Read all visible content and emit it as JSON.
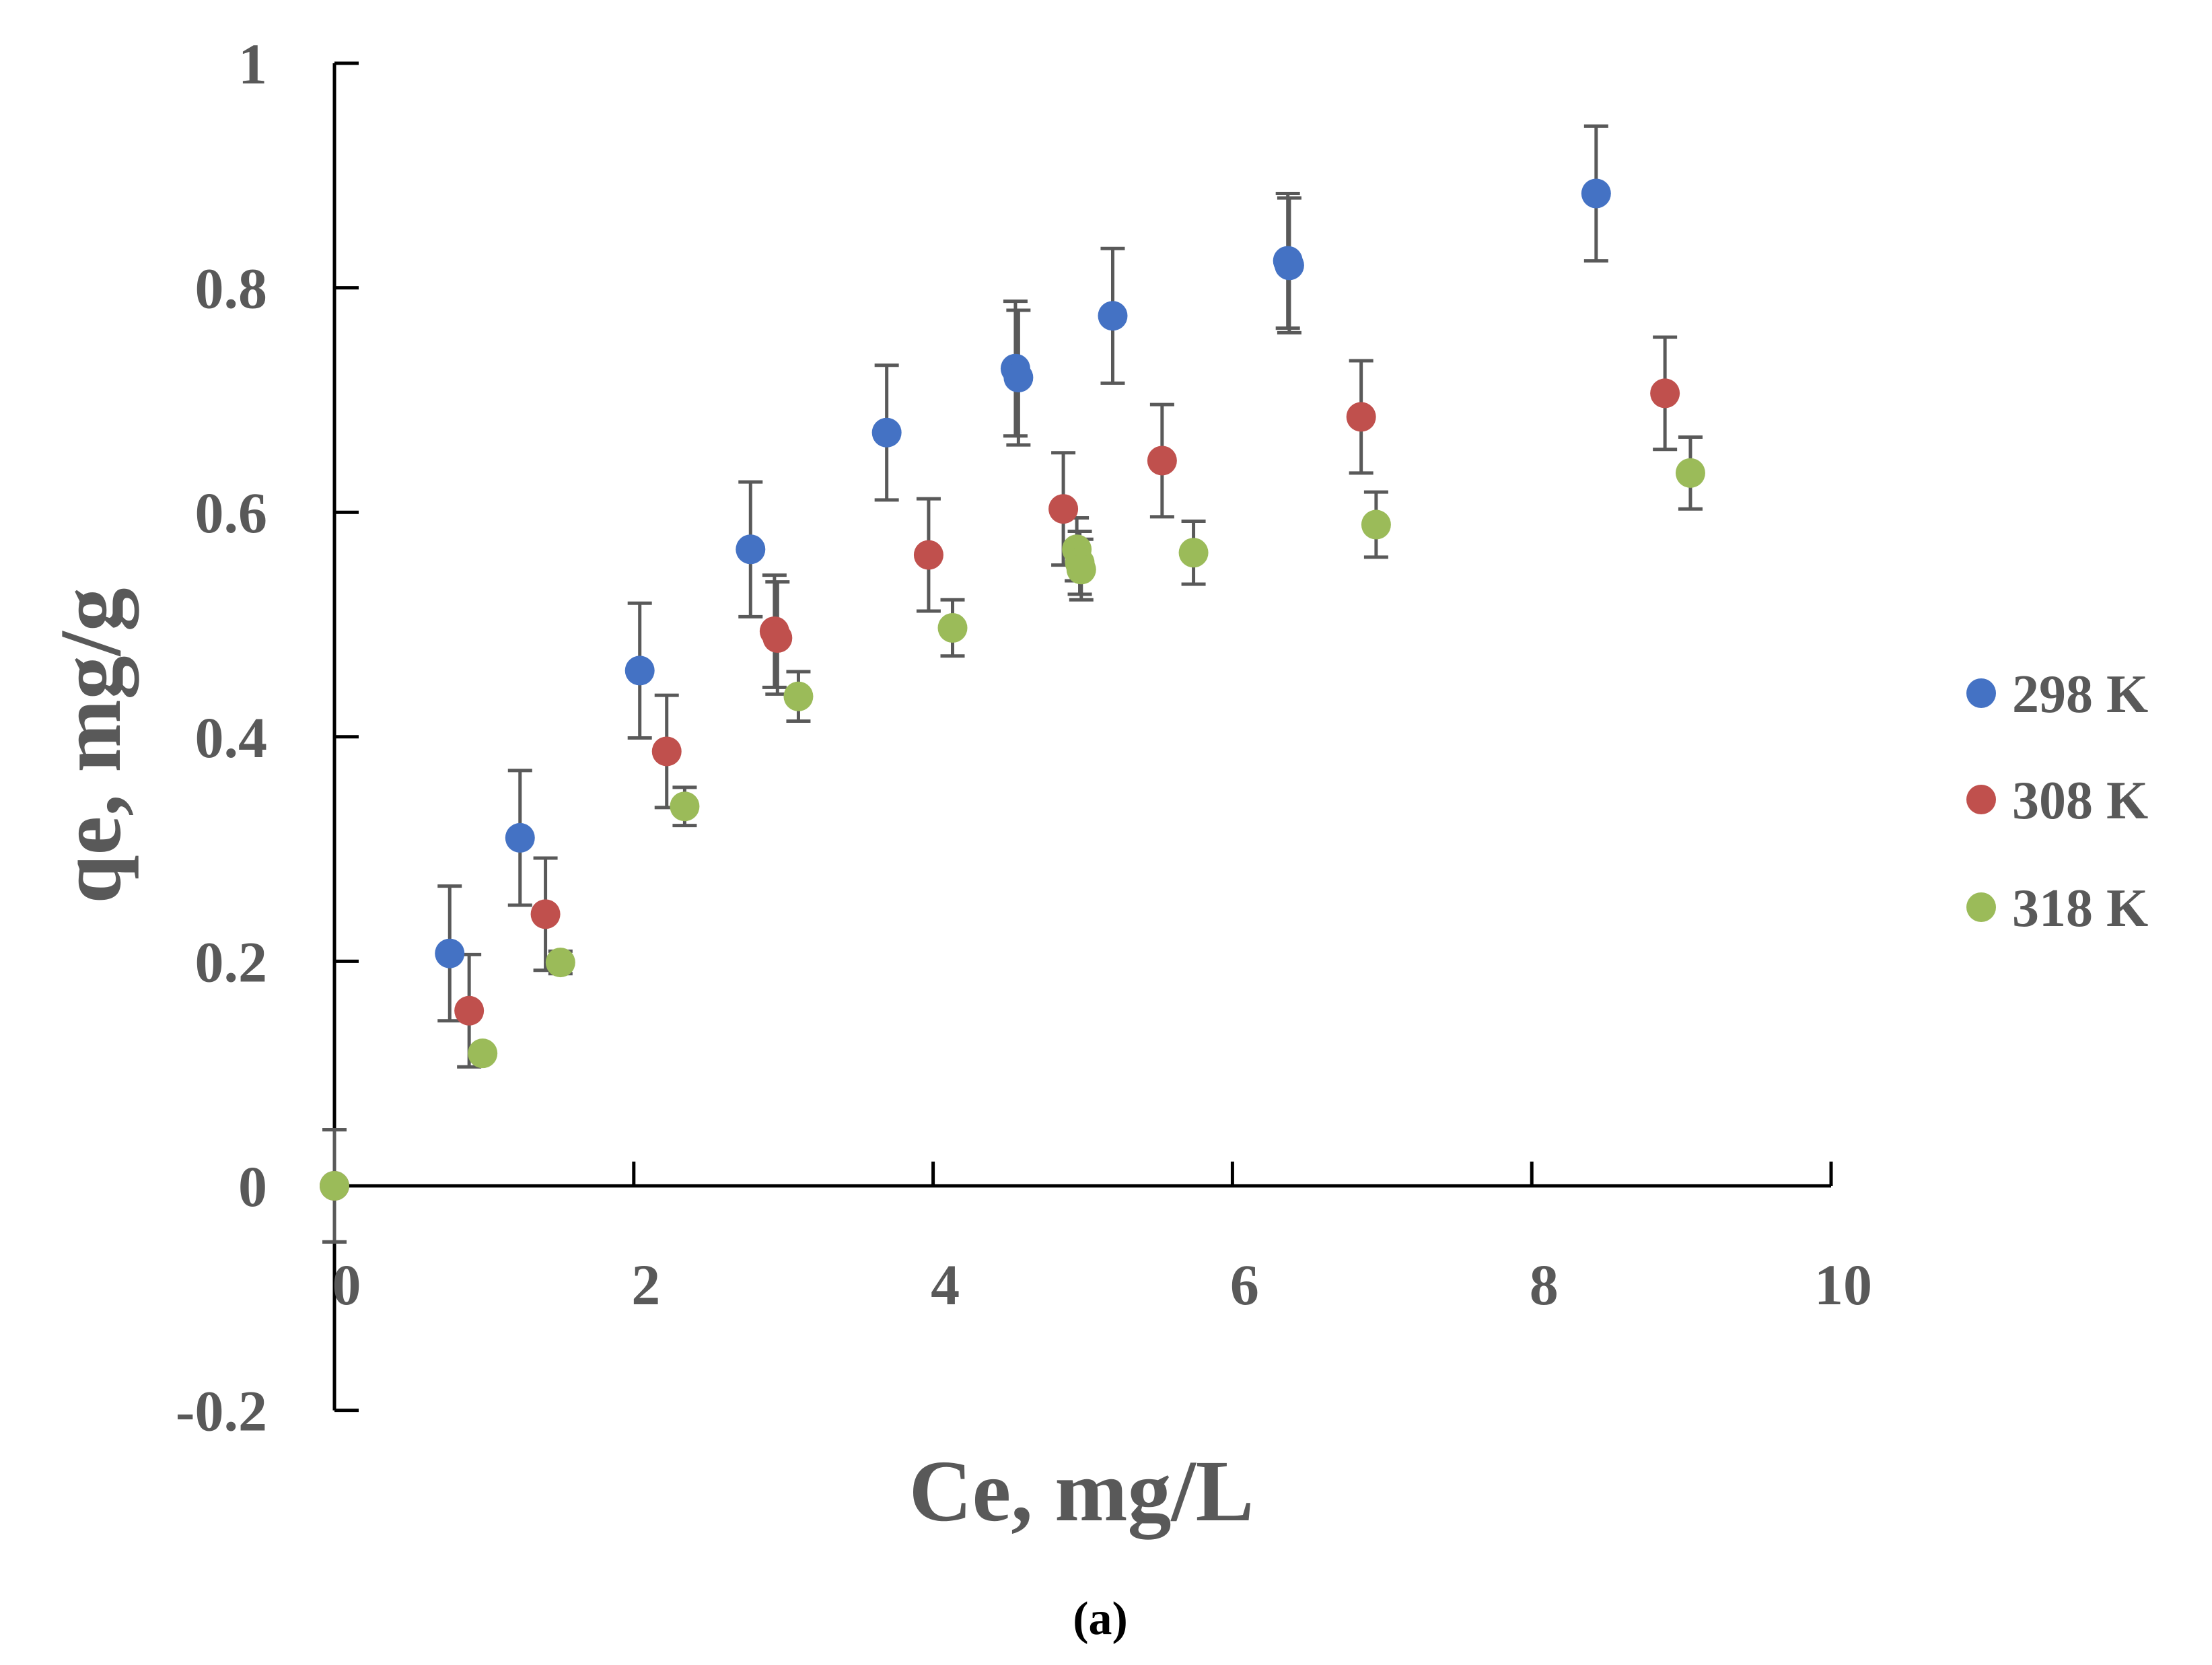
{
  "chart_data": {
    "type": "scatter",
    "title": "",
    "caption": "(a)",
    "xlabel": "Ce, mg/L",
    "ylabel": "qe, mg/g",
    "xlim": [
      0,
      10
    ],
    "ylim": [
      -0.2,
      1
    ],
    "xticks": [
      0,
      2,
      4,
      6,
      8,
      10
    ],
    "xtick_labels": [
      "0",
      "2",
      "4",
      "6",
      "8",
      "10"
    ],
    "yticks": [
      -0.2,
      0,
      0.2,
      0.4,
      0.6,
      0.8,
      1
    ],
    "ytick_labels": [
      "-0.2",
      "0",
      "0.2",
      "0.4",
      "0.6",
      "0.8",
      "1"
    ],
    "grid": false,
    "legend_position": "right",
    "error_bars": true,
    "series": [
      {
        "name": "298 K",
        "color": "#4472C4",
        "points": [
          {
            "x": 0,
            "y": 0,
            "err": 0.05
          },
          {
            "x": 0.77,
            "y": 0.207,
            "err": 0.06
          },
          {
            "x": 1.24,
            "y": 0.31,
            "err": 0.06
          },
          {
            "x": 2.04,
            "y": 0.459,
            "err": 0.06
          },
          {
            "x": 2.78,
            "y": 0.567,
            "err": 0.06
          },
          {
            "x": 3.69,
            "y": 0.671,
            "err": 0.06
          },
          {
            "x": 4.55,
            "y": 0.728,
            "err": 0.06
          },
          {
            "x": 4.57,
            "y": 0.72,
            "err": 0.06
          },
          {
            "x": 5.2,
            "y": 0.775,
            "err": 0.06
          },
          {
            "x": 6.37,
            "y": 0.824,
            "err": 0.06
          },
          {
            "x": 6.38,
            "y": 0.82,
            "err": 0.06
          },
          {
            "x": 8.43,
            "y": 0.884,
            "err": 0.06
          }
        ]
      },
      {
        "name": "308 K",
        "color": "#C0504D",
        "points": [
          {
            "x": 0,
            "y": 0,
            "err": 0.05
          },
          {
            "x": 0.9,
            "y": 0.156,
            "err": 0.05
          },
          {
            "x": 1.41,
            "y": 0.242,
            "err": 0.05
          },
          {
            "x": 2.22,
            "y": 0.387,
            "err": 0.05
          },
          {
            "x": 2.94,
            "y": 0.494,
            "err": 0.05
          },
          {
            "x": 2.96,
            "y": 0.488,
            "err": 0.05
          },
          {
            "x": 3.97,
            "y": 0.562,
            "err": 0.05
          },
          {
            "x": 4.87,
            "y": 0.603,
            "err": 0.05
          },
          {
            "x": 5.53,
            "y": 0.646,
            "err": 0.05
          },
          {
            "x": 6.86,
            "y": 0.685,
            "err": 0.05
          },
          {
            "x": 8.89,
            "y": 0.706,
            "err": 0.05
          }
        ]
      },
      {
        "name": "318 K",
        "color": "#9BBB59",
        "points": [
          {
            "x": 0,
            "y": 0,
            "err": 0.0
          },
          {
            "x": 0.99,
            "y": 0.118,
            "err": 0.0
          },
          {
            "x": 1.51,
            "y": 0.199,
            "err": 0.01
          },
          {
            "x": 2.34,
            "y": 0.338,
            "err": 0.017
          },
          {
            "x": 3.1,
            "y": 0.436,
            "err": 0.022
          },
          {
            "x": 4.13,
            "y": 0.497,
            "err": 0.025
          },
          {
            "x": 4.96,
            "y": 0.567,
            "err": 0.028
          },
          {
            "x": 4.98,
            "y": 0.555,
            "err": 0.028
          },
          {
            "x": 4.99,
            "y": 0.549,
            "err": 0.027
          },
          {
            "x": 5.74,
            "y": 0.564,
            "err": 0.028
          },
          {
            "x": 6.96,
            "y": 0.589,
            "err": 0.029
          },
          {
            "x": 9.06,
            "y": 0.635,
            "err": 0.032
          }
        ]
      }
    ]
  }
}
